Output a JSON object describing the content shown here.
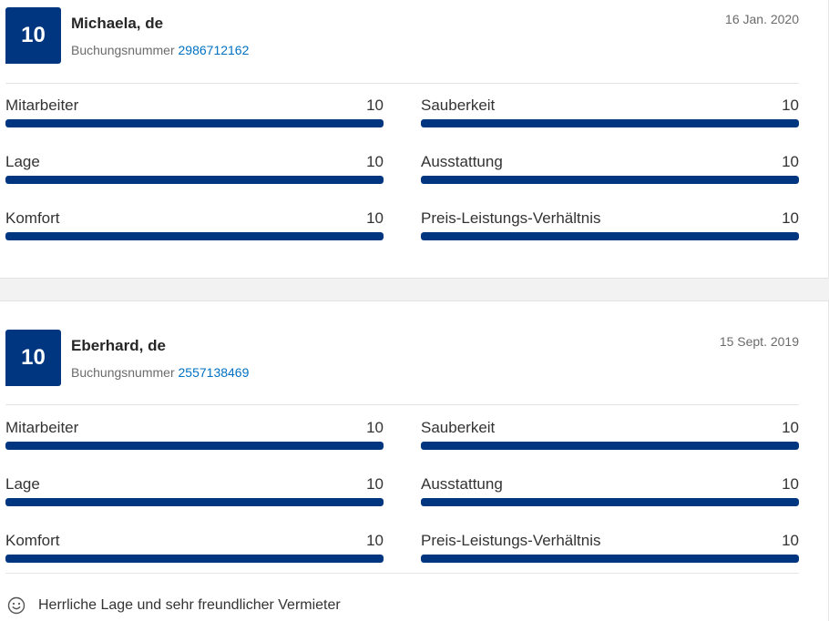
{
  "reviews": [
    {
      "score": "10",
      "name": "Michaela, de",
      "booking_label": "Buchungsnummer",
      "booking_number": "2986712162",
      "date": "16 Jan. 2020",
      "ratings": [
        {
          "label": "Mitarbeiter",
          "value": "10",
          "fill": 1.0
        },
        {
          "label": "Sauberkeit",
          "value": "10",
          "fill": 1.0
        },
        {
          "label": "Lage",
          "value": "10",
          "fill": 1.0
        },
        {
          "label": "Ausstattung",
          "value": "10",
          "fill": 1.0
        },
        {
          "label": "Komfort",
          "value": "10",
          "fill": 1.0
        },
        {
          "label": "Preis-Leistungs-Verhältnis",
          "value": "10",
          "fill": 1.0
        }
      ]
    },
    {
      "score": "10",
      "name": "Eberhard, de",
      "booking_label": "Buchungsnummer",
      "booking_number": "2557138469",
      "date": "15 Sept. 2019",
      "ratings": [
        {
          "label": "Mitarbeiter",
          "value": "10",
          "fill": 1.0
        },
        {
          "label": "Sauberkeit",
          "value": "10",
          "fill": 1.0
        },
        {
          "label": "Lage",
          "value": "10",
          "fill": 1.0
        },
        {
          "label": "Ausstattung",
          "value": "10",
          "fill": 1.0
        },
        {
          "label": "Komfort",
          "value": "10",
          "fill": 1.0
        },
        {
          "label": "Preis-Leistungs-Verhältnis",
          "value": "10",
          "fill": 1.0
        }
      ],
      "comment": {
        "icon": "smiley-icon",
        "text": "Herrliche Lage und sehr freundlicher Vermieter"
      }
    }
  ],
  "colors": {
    "badge": "#003580",
    "bar": "#003580",
    "link": "#0071c2"
  }
}
